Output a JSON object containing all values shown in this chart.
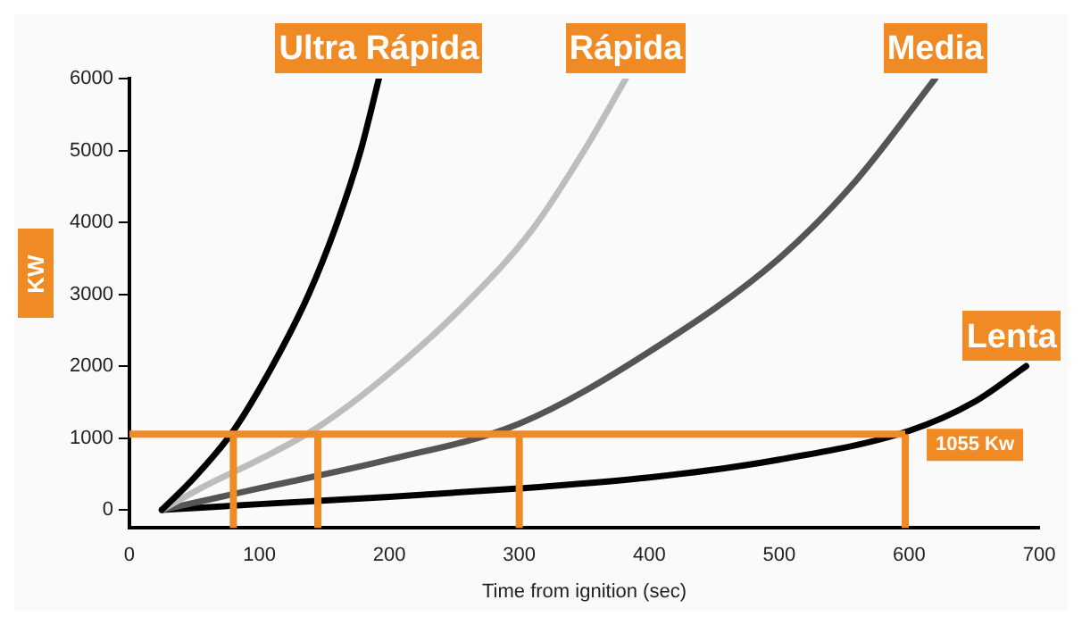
{
  "chart_data": {
    "type": "line",
    "xlabel": "Time from ignition (sec)",
    "ylabel": "KW",
    "xlim": [
      0,
      700
    ],
    "xticks": [
      0,
      100,
      200,
      300,
      400,
      500,
      600,
      700
    ],
    "ylim": [
      -250,
      6000
    ],
    "yticks": [
      0,
      1000,
      2000,
      3000,
      4000,
      5000,
      6000
    ],
    "grid": false,
    "legend": false,
    "marker": "none",
    "line_style": "solid",
    "series": [
      {
        "name": "Ultra Rápida",
        "color": "#000000",
        "x": [
          25,
          50,
          80,
          110,
          138,
          160,
          178,
          192
        ],
        "values": [
          0,
          450,
          1100,
          2000,
          3000,
          4000,
          5000,
          6000
        ]
      },
      {
        "name": "Rápida",
        "color": "#bdbdbd",
        "x": [
          25,
          60,
          100,
          145,
          200,
          255,
          310,
          350,
          382
        ],
        "values": [
          0,
          350,
          700,
          1150,
          1900,
          2800,
          3900,
          5000,
          6000
        ]
      },
      {
        "name": "Media",
        "color": "#555555",
        "x": [
          25,
          100,
          200,
          300,
          400,
          500,
          560,
          620
        ],
        "values": [
          0,
          300,
          700,
          1200,
          2200,
          3500,
          4600,
          6000
        ]
      },
      {
        "name": "Lenta",
        "color": "#000000",
        "x": [
          25,
          100,
          200,
          300,
          400,
          500,
          600,
          650,
          690
        ],
        "values": [
          0,
          80,
          180,
          300,
          450,
          700,
          1100,
          1500,
          2000
        ]
      }
    ],
    "ref_lines": [
      {
        "axis": "y",
        "value": 1055,
        "label": "1055 Kw",
        "color": "#f08a24"
      },
      {
        "axis": "x",
        "value": 80,
        "color": "#f08a24"
      },
      {
        "axis": "x",
        "value": 145,
        "color": "#f08a24"
      },
      {
        "axis": "x",
        "value": 300,
        "color": "#f08a24"
      },
      {
        "axis": "x",
        "value": 597,
        "color": "#f08a24"
      }
    ]
  }
}
